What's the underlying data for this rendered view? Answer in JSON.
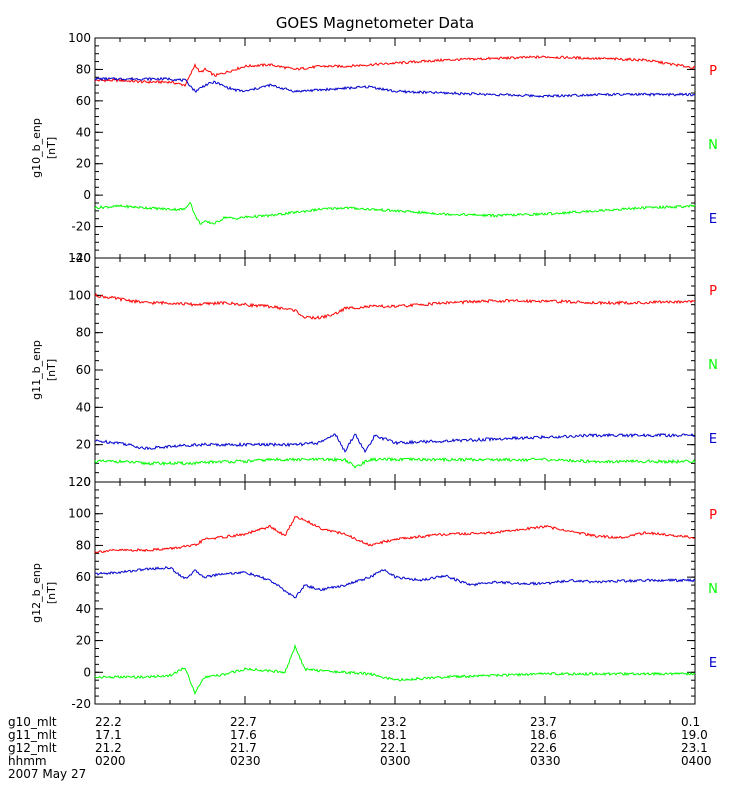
{
  "title": "GOES Magnetometer Data",
  "colors": {
    "P": "#ff0000",
    "N": "#00ff00",
    "E": "#0000cc",
    "frame": "#000000"
  },
  "chart_data": [
    {
      "type": "line",
      "ylabel": "g10_b_enp",
      "yunit": "[nT]",
      "ylim": [
        -40,
        100
      ],
      "yticks": [
        -40,
        -20,
        0,
        20,
        40,
        60,
        80,
        100
      ],
      "yticklabels": [
        "-40",
        "-20",
        "0",
        "20",
        "40",
        "60",
        "80",
        "100"
      ],
      "legend": [
        "P",
        "N",
        "E"
      ],
      "series": [
        {
          "name": "P",
          "color": "red",
          "x": [
            0,
            5,
            10,
            15,
            18,
            19,
            20,
            21,
            22,
            24,
            26,
            28,
            30,
            35,
            40,
            45,
            50,
            55,
            60,
            70,
            80,
            90,
            100,
            110,
            120
          ],
          "y": [
            73,
            73,
            72,
            72,
            70,
            76,
            83,
            78,
            80,
            76,
            78,
            80,
            82,
            83,
            80,
            82,
            82,
            83,
            84,
            86,
            87,
            88,
            87,
            86,
            81
          ]
        },
        {
          "name": "N",
          "color": "green",
          "x": [
            0,
            5,
            10,
            15,
            18,
            19,
            20,
            21,
            22,
            24,
            26,
            28,
            30,
            35,
            40,
            45,
            50,
            55,
            60,
            70,
            80,
            90,
            100,
            110,
            120
          ],
          "y": [
            -8,
            -7,
            -8,
            -9,
            -9,
            -4,
            -13,
            -18,
            -17,
            -18,
            -14,
            -15,
            -14,
            -13,
            -11,
            -9,
            -8,
            -9,
            -10,
            -12,
            -13,
            -12,
            -10,
            -8,
            -7
          ]
        },
        {
          "name": "E",
          "color": "blue",
          "x": [
            0,
            5,
            10,
            15,
            18,
            19,
            20,
            21,
            22,
            24,
            26,
            28,
            30,
            35,
            40,
            45,
            50,
            55,
            60,
            70,
            80,
            90,
            100,
            110,
            120
          ],
          "y": [
            74,
            74,
            74,
            74,
            73,
            70,
            66,
            68,
            70,
            72,
            69,
            67,
            66,
            70,
            66,
            67,
            68,
            69,
            66,
            65,
            64,
            63,
            64,
            64,
            64
          ]
        }
      ]
    },
    {
      "type": "line",
      "ylabel": "g11_b_enp",
      "yunit": "[nT]",
      "ylim": [
        0,
        120
      ],
      "yticks": [
        0,
        20,
        40,
        60,
        80,
        100,
        120
      ],
      "yticklabels": [
        "0",
        "20",
        "40",
        "60",
        "80",
        "100",
        "120"
      ],
      "legend": [
        "P",
        "N",
        "E"
      ],
      "series": [
        {
          "name": "P",
          "color": "red",
          "x": [
            0,
            5,
            10,
            15,
            20,
            25,
            30,
            35,
            40,
            42,
            45,
            48,
            50,
            55,
            60,
            70,
            80,
            90,
            100,
            110,
            120
          ],
          "y": [
            100,
            98,
            96,
            96,
            95,
            96,
            95,
            94,
            92,
            88,
            88,
            90,
            93,
            94,
            94,
            96,
            97,
            97,
            96,
            96,
            97
          ]
        },
        {
          "name": "N",
          "color": "green",
          "x": [
            0,
            5,
            10,
            15,
            20,
            25,
            30,
            35,
            40,
            45,
            50,
            52,
            55,
            60,
            70,
            80,
            90,
            100,
            110,
            120
          ],
          "y": [
            11,
            11,
            10,
            10,
            10,
            11,
            11,
            12,
            12,
            12,
            12,
            8,
            12,
            12,
            12,
            12,
            12,
            11,
            11,
            11
          ]
        },
        {
          "name": "E",
          "color": "blue",
          "x": [
            0,
            5,
            10,
            15,
            20,
            25,
            30,
            35,
            40,
            45,
            48,
            50,
            52,
            54,
            56,
            60,
            70,
            80,
            90,
            100,
            110,
            120
          ],
          "y": [
            22,
            21,
            18,
            19,
            20,
            20,
            20,
            20,
            20,
            21,
            26,
            16,
            26,
            16,
            25,
            21,
            22,
            23,
            24,
            25,
            25,
            25
          ]
        }
      ]
    },
    {
      "type": "line",
      "ylabel": "g12_b_enp",
      "yunit": "[nT]",
      "ylim": [
        -20,
        120
      ],
      "yticks": [
        -20,
        0,
        20,
        40,
        60,
        80,
        100,
        120
      ],
      "yticklabels": [
        "-20",
        "0",
        "20",
        "40",
        "60",
        "80",
        "100",
        "120"
      ],
      "legend": [
        "P",
        "N",
        "E"
      ],
      "series": [
        {
          "name": "P",
          "color": "red",
          "x": [
            0,
            5,
            10,
            15,
            20,
            22,
            25,
            30,
            35,
            38,
            40,
            42,
            45,
            50,
            55,
            60,
            70,
            80,
            90,
            100,
            105,
            110,
            120
          ],
          "y": [
            76,
            77,
            77,
            78,
            80,
            84,
            85,
            87,
            92,
            86,
            98,
            96,
            91,
            87,
            80,
            84,
            87,
            88,
            92,
            86,
            85,
            88,
            85
          ]
        },
        {
          "name": "N",
          "color": "green",
          "x": [
            0,
            5,
            10,
            15,
            18,
            20,
            22,
            25,
            30,
            35,
            38,
            40,
            42,
            45,
            50,
            55,
            60,
            65,
            70,
            80,
            90,
            100,
            110,
            120
          ],
          "y": [
            -3,
            -3,
            -3,
            -2,
            3,
            -13,
            -3,
            -2,
            2,
            1,
            0,
            16,
            2,
            1,
            0,
            -1,
            -5,
            -4,
            -3,
            -2,
            -1,
            -1,
            -1,
            -1
          ]
        },
        {
          "name": "E",
          "color": "blue",
          "x": [
            0,
            5,
            10,
            15,
            18,
            20,
            22,
            25,
            30,
            35,
            40,
            42,
            45,
            50,
            55,
            58,
            60,
            65,
            70,
            75,
            80,
            85,
            90,
            95,
            100,
            110,
            120
          ],
          "y": [
            62,
            63,
            65,
            66,
            59,
            64,
            60,
            62,
            63,
            58,
            47,
            55,
            52,
            55,
            60,
            65,
            60,
            58,
            61,
            55,
            57,
            56,
            56,
            58,
            57,
            58,
            58
          ]
        }
      ]
    }
  ],
  "x_axis": {
    "xlim": [
      0,
      120
    ],
    "major_ticks": [
      0,
      30,
      60,
      90,
      120
    ],
    "rows": [
      {
        "label": "g10_mlt",
        "values": [
          "22.2",
          "22.7",
          "23.2",
          "23.7",
          "0.1"
        ]
      },
      {
        "label": "g11_mlt",
        "values": [
          "17.1",
          "17.6",
          "18.1",
          "18.6",
          "19.0"
        ]
      },
      {
        "label": "g12_mlt",
        "values": [
          "21.2",
          "21.7",
          "22.1",
          "22.6",
          "23.1"
        ]
      },
      {
        "label": "hhmm",
        "values": [
          "0200",
          "0230",
          "0300",
          "0330",
          "0400"
        ]
      }
    ],
    "date": "2007 May 27"
  }
}
